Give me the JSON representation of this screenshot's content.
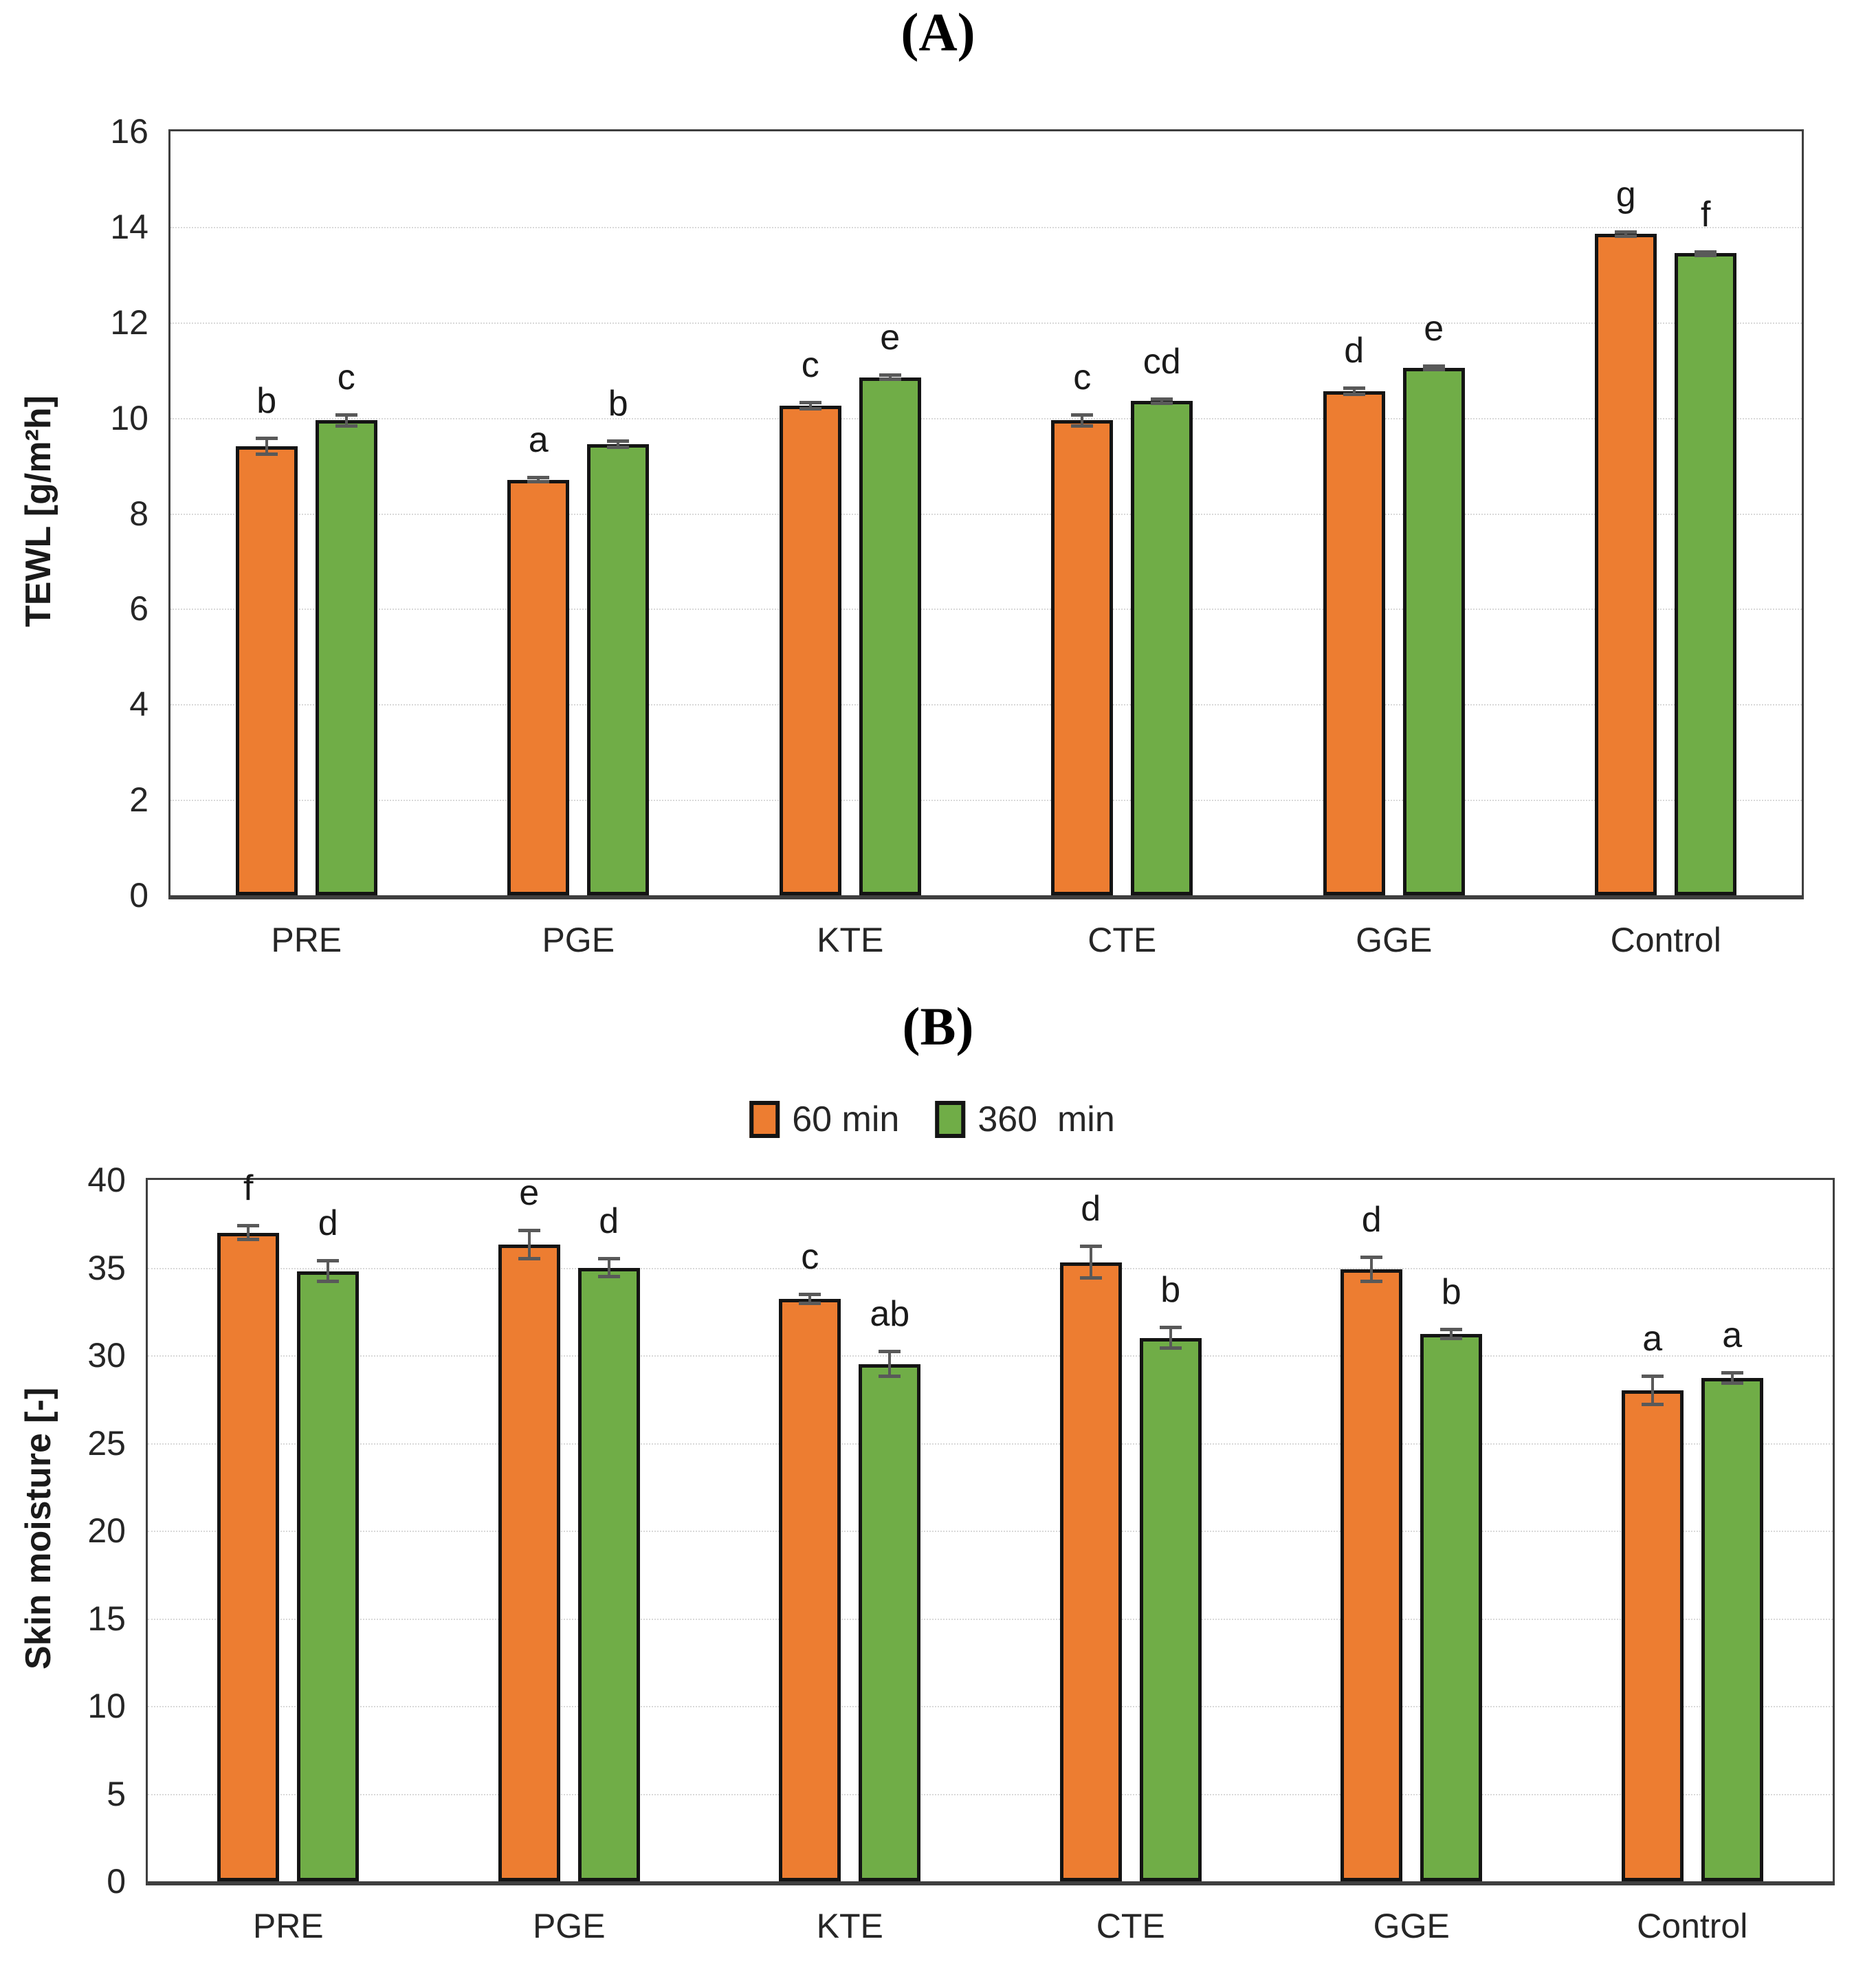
{
  "figure": {
    "panel_count": 2,
    "description_visible_text_only": true
  },
  "colors": {
    "series_60min": "#ED7D31",
    "series_360min": "#70AD47",
    "bar_border": "#141414",
    "error_bar": "#595959",
    "gridline": "#d9d9d9",
    "frame": "#3f3f3f",
    "text": "#262626"
  },
  "chart_data": [
    {
      "type": "bar",
      "panel_label": "(A)",
      "ylabel": "TEWL [g/m²h]",
      "ylim": [
        0,
        16
      ],
      "yticks": [
        0,
        2,
        4,
        6,
        8,
        10,
        12,
        14,
        16
      ],
      "grid": true,
      "legend_position": "inside-top-center",
      "categories": [
        "PRE",
        "PGE",
        "KTE",
        "CTE",
        "GGE",
        "Control"
      ],
      "series": [
        {
          "name": "60 min",
          "color": "#ED7D31",
          "values": [
            9.4,
            8.7,
            10.25,
            9.95,
            10.55,
            13.85
          ],
          "errors": [
            0.2,
            0.08,
            0.1,
            0.15,
            0.1,
            0.08
          ],
          "letters": [
            "b",
            "a",
            "c",
            "c",
            "d",
            "g"
          ]
        },
        {
          "name": "360  min",
          "color": "#70AD47",
          "values": [
            9.95,
            9.45,
            10.85,
            10.35,
            11.05,
            13.45
          ],
          "errors": [
            0.15,
            0.1,
            0.08,
            0.08,
            0.07,
            0.06
          ],
          "letters": [
            "c",
            "b",
            "e",
            "cd",
            "e",
            "f"
          ]
        }
      ]
    },
    {
      "type": "bar",
      "panel_label": "(B)",
      "ylabel": "Skin moisture [-]",
      "ylim": [
        0,
        40
      ],
      "yticks": [
        0,
        5,
        10,
        15,
        20,
        25,
        30,
        35,
        40
      ],
      "grid": true,
      "legend_position": "above-top-center",
      "categories": [
        "PRE",
        "PGE",
        "KTE",
        "CTE",
        "GGE",
        "Control"
      ],
      "series": [
        {
          "name": "60 min",
          "color": "#ED7D31",
          "values": [
            37.0,
            36.3,
            33.2,
            35.3,
            34.9,
            28.0
          ],
          "errors": [
            0.5,
            0.9,
            0.35,
            1.0,
            0.8,
            0.9
          ],
          "letters": [
            "f",
            "e",
            "c",
            "d",
            "d",
            "a"
          ]
        },
        {
          "name": "360  min",
          "color": "#70AD47",
          "values": [
            34.8,
            35.0,
            29.5,
            31.0,
            31.2,
            28.7
          ],
          "errors": [
            0.7,
            0.6,
            0.8,
            0.7,
            0.35,
            0.4
          ],
          "letters": [
            "d",
            "d",
            "ab",
            "b",
            "b",
            "a"
          ]
        }
      ]
    }
  ]
}
